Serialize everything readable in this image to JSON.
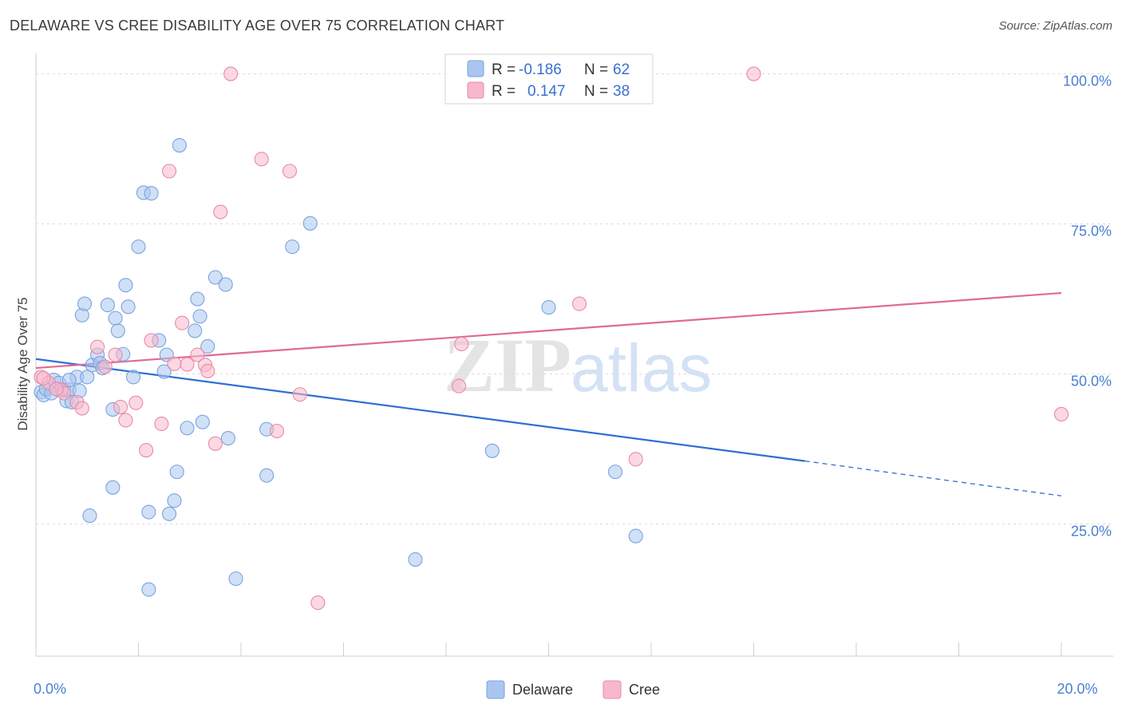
{
  "title": "DELAWARE VS CREE DISABILITY AGE OVER 75 CORRELATION CHART",
  "source": "Source: ZipAtlas.com",
  "watermark": {
    "zip": "ZIP",
    "atlas": "atlas"
  },
  "legend_top": {
    "rows": [
      {
        "r_label": "R =",
        "r_value": "-0.186",
        "n_label": "N =",
        "n_value": "62",
        "color": "#aac6f0"
      },
      {
        "r_label": "R =",
        "r_value": "0.147",
        "n_label": "N =",
        "n_value": "38",
        "color": "#f7b8cb"
      }
    ]
  },
  "legend_bottom": {
    "items": [
      {
        "label": "Delaware",
        "color": "#aac6f0"
      },
      {
        "label": "Cree",
        "color": "#f7b8cb"
      }
    ]
  },
  "chart_data": {
    "type": "scatter",
    "xlabel": "",
    "ylabel": "Disability Age Over 75",
    "xlim": [
      0,
      20
    ],
    "ylim": [
      3,
      103
    ],
    "x_tick_labels": [
      {
        "value": 0,
        "label": "0.0%"
      },
      {
        "value": 20,
        "label": "20.0%"
      }
    ],
    "y_tick_labels": [
      {
        "value": 25,
        "label": "25.0%"
      },
      {
        "value": 50,
        "label": "50.0%"
      },
      {
        "value": 75,
        "label": "75.0%"
      },
      {
        "value": 100,
        "label": "100.0%"
      }
    ],
    "grid": true,
    "legend_position": "top-center",
    "series": [
      {
        "name": "Delaware",
        "color": "#aac6f0",
        "stroke": "#7aa3de",
        "line_color": "#2e6fd4",
        "trend": {
          "x0": 0,
          "y0": 52.5,
          "x1": 15.0,
          "y1": 35.5,
          "x_dash_end": 20,
          "y_dash_end": 29.7
        },
        "points": [
          [
            0.1,
            47
          ],
          [
            0.15,
            46.5
          ],
          [
            0.2,
            47.5
          ],
          [
            0.3,
            46.8
          ],
          [
            0.35,
            49
          ],
          [
            0.4,
            47.5
          ],
          [
            0.45,
            48.5
          ],
          [
            0.55,
            47.3
          ],
          [
            0.6,
            45.5
          ],
          [
            0.65,
            47.4
          ],
          [
            0.7,
            45.3
          ],
          [
            0.8,
            49.5
          ],
          [
            0.85,
            47.2
          ],
          [
            0.9,
            59.8
          ],
          [
            0.95,
            61.7
          ],
          [
            1.0,
            49.5
          ],
          [
            1.1,
            51.5
          ],
          [
            1.2,
            53.2
          ],
          [
            1.25,
            51.8
          ],
          [
            1.4,
            61.5
          ],
          [
            1.5,
            44.1
          ],
          [
            1.55,
            59.3
          ],
          [
            1.6,
            57.2
          ],
          [
            1.7,
            53.3
          ],
          [
            1.75,
            64.8
          ],
          [
            1.8,
            61.2
          ],
          [
            1.9,
            49.5
          ],
          [
            1.05,
            26.4
          ],
          [
            1.5,
            31.1
          ],
          [
            2.0,
            71.2
          ],
          [
            2.1,
            80.2
          ],
          [
            2.25,
            80.1
          ],
          [
            2.4,
            55.6
          ],
          [
            2.5,
            50.4
          ],
          [
            2.55,
            53.2
          ],
          [
            2.6,
            26.7
          ],
          [
            2.7,
            28.9
          ],
          [
            2.75,
            33.7
          ],
          [
            2.8,
            88.1
          ],
          [
            2.95,
            41.0
          ],
          [
            3.1,
            57.2
          ],
          [
            3.15,
            62.5
          ],
          [
            3.2,
            59.6
          ],
          [
            3.25,
            42.0
          ],
          [
            3.35,
            54.6
          ],
          [
            3.5,
            66.1
          ],
          [
            3.7,
            64.9
          ],
          [
            3.75,
            39.3
          ],
          [
            3.9,
            15.9
          ],
          [
            4.5,
            40.8
          ],
          [
            4.5,
            33.1
          ],
          [
            5.0,
            71.2
          ],
          [
            5.35,
            75.1
          ],
          [
            2.2,
            27.0
          ],
          [
            2.2,
            14.1
          ],
          [
            7.4,
            19.1
          ],
          [
            8.9,
            37.2
          ],
          [
            10.0,
            61.1
          ],
          [
            11.3,
            33.7
          ],
          [
            11.7,
            23.0
          ],
          [
            0.65,
            49.0
          ],
          [
            1.3,
            51.0
          ]
        ]
      },
      {
        "name": "Cree",
        "color": "#f7b8cb",
        "stroke": "#e88aa8",
        "line_color": "#e06a95",
        "trend": {
          "x0": 0,
          "y0": 51.0,
          "x1": 20,
          "y1": 63.5
        },
        "points": [
          [
            0.1,
            49.5
          ],
          [
            0.25,
            48.5
          ],
          [
            0.5,
            47.4
          ],
          [
            0.55,
            46.8
          ],
          [
            0.8,
            45.3
          ],
          [
            0.9,
            44.3
          ],
          [
            1.2,
            54.5
          ],
          [
            1.35,
            51.2
          ],
          [
            1.55,
            53.2
          ],
          [
            1.65,
            44.5
          ],
          [
            1.75,
            42.3
          ],
          [
            1.95,
            45.2
          ],
          [
            2.15,
            37.3
          ],
          [
            2.25,
            55.6
          ],
          [
            2.45,
            41.7
          ],
          [
            2.6,
            83.8
          ],
          [
            2.7,
            51.7
          ],
          [
            2.85,
            58.5
          ],
          [
            2.95,
            51.6
          ],
          [
            3.15,
            53.2
          ],
          [
            3.3,
            51.5
          ],
          [
            3.35,
            50.5
          ],
          [
            3.5,
            38.4
          ],
          [
            3.6,
            77.0
          ],
          [
            3.8,
            100.0
          ],
          [
            4.4,
            85.8
          ],
          [
            4.7,
            40.5
          ],
          [
            4.95,
            83.8
          ],
          [
            5.15,
            46.6
          ],
          [
            5.5,
            11.9
          ],
          [
            8.3,
            55.0
          ],
          [
            8.25,
            48.0
          ],
          [
            10.6,
            61.7
          ],
          [
            11.7,
            35.8
          ],
          [
            14.0,
            100.0
          ],
          [
            20.0,
            43.3
          ],
          [
            0.15,
            49.3
          ],
          [
            0.4,
            47.5
          ]
        ]
      }
    ]
  }
}
